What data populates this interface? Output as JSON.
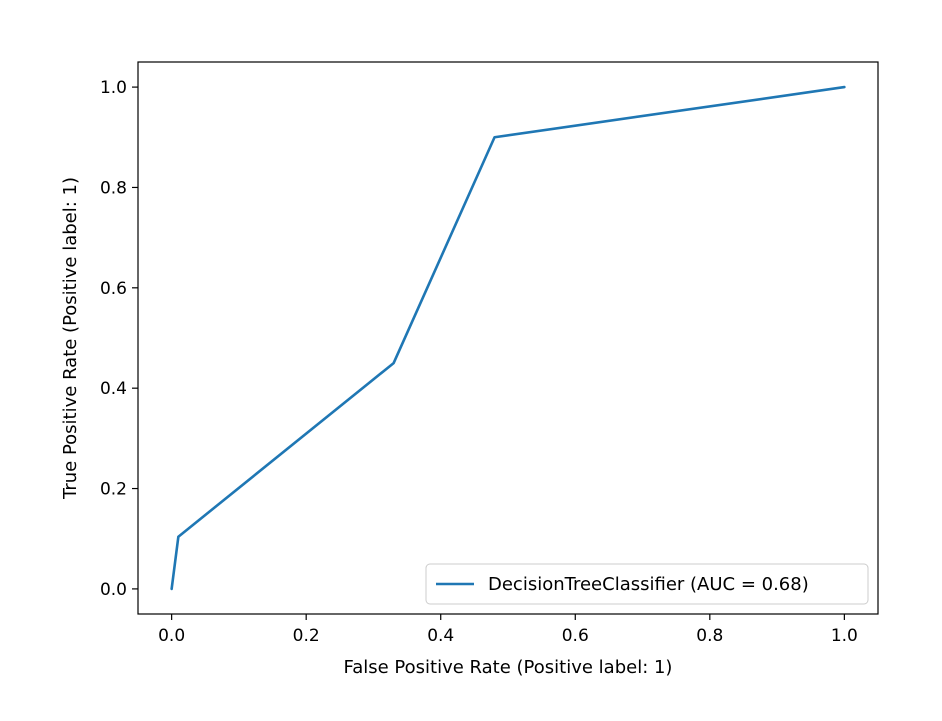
{
  "chart_data": {
    "type": "line",
    "title": "",
    "xlabel": "False Positive Rate (Positive label: 1)",
    "ylabel": "True Positive Rate (Positive label: 1)",
    "xlim": [
      -0.05,
      1.05
    ],
    "ylim": [
      -0.05,
      1.05
    ],
    "xticks": [
      0.0,
      0.2,
      0.4,
      0.6,
      0.8,
      1.0
    ],
    "xtick_labels": [
      "0.0",
      "0.2",
      "0.4",
      "0.6",
      "0.8",
      "1.0"
    ],
    "yticks": [
      0.0,
      0.2,
      0.4,
      0.6,
      0.8,
      1.0
    ],
    "ytick_labels": [
      "0.0",
      "0.2",
      "0.4",
      "0.6",
      "0.8",
      "1.0"
    ],
    "grid": false,
    "legend_position": "bottom-right",
    "series": [
      {
        "name": "DecisionTreeClassifier (AUC = 0.68)",
        "color": "#1f77b4",
        "x": [
          0.0,
          0.01,
          0.33,
          0.48,
          1.0
        ],
        "y": [
          0.0,
          0.104,
          0.45,
          0.9,
          1.0
        ]
      }
    ]
  }
}
